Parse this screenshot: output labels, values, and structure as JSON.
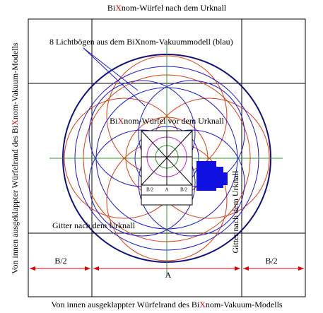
{
  "title": {
    "pre": "Bi",
    "x": "X",
    "post": "nom-Würfel nach dem Urknall"
  },
  "arc_note": "8 Lichtbögen aus dem BiXnom-Vakuummodell (blau)",
  "inner_title": {
    "pre": "Bi",
    "x": "X",
    "post": "nom-Würfel vor dem Urknall"
  },
  "grid_label": "Gitter nach dem Urknall",
  "grid_label_vertical": "Gitter nach dem Urknall",
  "dims": {
    "left": "B/2",
    "center": "A",
    "right": "B/2"
  },
  "inner_dims": {
    "left": "B/2",
    "center": "A",
    "right": "B/2"
  },
  "side_label": {
    "pre": "Von innen ausgeklappter Würfelrand des Bi",
    "x": "X",
    "post": "nom-Vakuum-Modells"
  },
  "bottom_label": {
    "pre": "Von innen ausgeklappter Würfelrand des Bi",
    "x": "X",
    "post": "nom-Vakuum-Modells"
  }
}
